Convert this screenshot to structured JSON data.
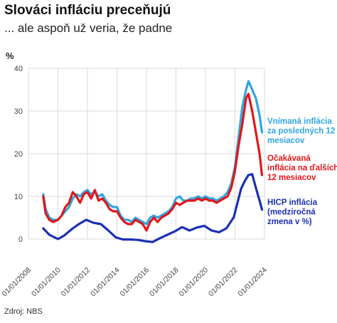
{
  "header": {
    "title": "Slováci infláciu preceňujú",
    "subtitle": "... ale aspoň už veria, že padne"
  },
  "footer": {
    "source": "Zdroj: NBS"
  },
  "colors": {
    "perceived": "#2ea6e0",
    "expected": "#e3151a",
    "hicp": "#1b2fb4",
    "grid": "#d9d9d9",
    "axis_text": "#444444"
  },
  "chart_data": {
    "type": "line",
    "title": "Slováci infláciu preceňujú",
    "subtitle": "... ale aspoň už veria, že padne",
    "ylabel": "%",
    "ylim": [
      -2,
      40
    ],
    "yticks": [
      0,
      10,
      20,
      30,
      40
    ],
    "xlim": [
      "2008-01",
      "2024-01"
    ],
    "xticks": [
      "01/01/2008",
      "01/01/2010",
      "01/01/2012",
      "01/01/2014",
      "01/01/2016",
      "01/01/2018",
      "01/01/2020",
      "01/01/2022",
      "01/01/2024"
    ],
    "grid": true,
    "legend": "inline-right",
    "series": [
      {
        "name": "Vnímaná inflácia za posledných 12 mesiacov",
        "label_lines": [
          "Vnímaná inflácia",
          "za posledných 12",
          "mesiacov"
        ],
        "color_key": "perceived",
        "points": [
          [
            "2009-01",
            10.5
          ],
          [
            "2009-03",
            7
          ],
          [
            "2009-06",
            5
          ],
          [
            "2009-09",
            4.5
          ],
          [
            "2010-01",
            4.5
          ],
          [
            "2010-04",
            5.5
          ],
          [
            "2010-07",
            6.5
          ],
          [
            "2010-10",
            7.5
          ],
          [
            "2011-01",
            9.5
          ],
          [
            "2011-04",
            10.5
          ],
          [
            "2011-07",
            10
          ],
          [
            "2011-10",
            11
          ],
          [
            "2012-01",
            11.5
          ],
          [
            "2012-04",
            10.5
          ],
          [
            "2012-07",
            11
          ],
          [
            "2012-10",
            10
          ],
          [
            "2013-01",
            10.5
          ],
          [
            "2013-04",
            9
          ],
          [
            "2013-07",
            8
          ],
          [
            "2013-10",
            7.5
          ],
          [
            "2014-01",
            7.5
          ],
          [
            "2014-04",
            5.5
          ],
          [
            "2014-07",
            4.5
          ],
          [
            "2014-10",
            4.5
          ],
          [
            "2015-01",
            4
          ],
          [
            "2015-04",
            5
          ],
          [
            "2015-07",
            4.5
          ],
          [
            "2015-10",
            4
          ],
          [
            "2016-01",
            3.5
          ],
          [
            "2016-04",
            5
          ],
          [
            "2016-07",
            5.5
          ],
          [
            "2016-10",
            5
          ],
          [
            "2017-01",
            5.5
          ],
          [
            "2017-04",
            6
          ],
          [
            "2017-07",
            6.5
          ],
          [
            "2017-10",
            7.5
          ],
          [
            "2018-01",
            9.5
          ],
          [
            "2018-04",
            10
          ],
          [
            "2018-07",
            9
          ],
          [
            "2018-10",
            9
          ],
          [
            "2019-01",
            9.5
          ],
          [
            "2019-04",
            9.5
          ],
          [
            "2019-07",
            10
          ],
          [
            "2019-10",
            9.5
          ],
          [
            "2020-01",
            10
          ],
          [
            "2020-04",
            9.5
          ],
          [
            "2020-07",
            9.5
          ],
          [
            "2020-10",
            9
          ],
          [
            "2021-01",
            9.5
          ],
          [
            "2021-04",
            10
          ],
          [
            "2021-07",
            11
          ],
          [
            "2021-10",
            13
          ],
          [
            "2022-01",
            17
          ],
          [
            "2022-04",
            24
          ],
          [
            "2022-07",
            31
          ],
          [
            "2022-10",
            35
          ],
          [
            "2022-12",
            37
          ],
          [
            "2023-03",
            35
          ],
          [
            "2023-06",
            33
          ],
          [
            "2023-09",
            29
          ],
          [
            "2023-11",
            25
          ]
        ]
      },
      {
        "name": "Očakávaná inflácia na ďalších 12 mesiacov",
        "label_lines": [
          "Očakávaná",
          "inflácia na ďalších",
          "12 mesiacov"
        ],
        "color_key": "expected",
        "points": [
          [
            "2009-01",
            10
          ],
          [
            "2009-03",
            6
          ],
          [
            "2009-06",
            4.5
          ],
          [
            "2009-09",
            4
          ],
          [
            "2010-01",
            4.5
          ],
          [
            "2010-04",
            5.5
          ],
          [
            "2010-07",
            7.5
          ],
          [
            "2010-10",
            8.5
          ],
          [
            "2011-01",
            11
          ],
          [
            "2011-04",
            10
          ],
          [
            "2011-07",
            8.5
          ],
          [
            "2011-10",
            10.5
          ],
          [
            "2012-01",
            11
          ],
          [
            "2012-04",
            9.5
          ],
          [
            "2012-07",
            11.5
          ],
          [
            "2012-10",
            9
          ],
          [
            "2013-01",
            9.5
          ],
          [
            "2013-04",
            8.5
          ],
          [
            "2013-07",
            7
          ],
          [
            "2013-10",
            6.5
          ],
          [
            "2014-01",
            6.5
          ],
          [
            "2014-04",
            5
          ],
          [
            "2014-07",
            4
          ],
          [
            "2014-10",
            3.5
          ],
          [
            "2015-01",
            3.5
          ],
          [
            "2015-04",
            4.5
          ],
          [
            "2015-07",
            4
          ],
          [
            "2015-10",
            3.5
          ],
          [
            "2016-01",
            2
          ],
          [
            "2016-04",
            4
          ],
          [
            "2016-07",
            5
          ],
          [
            "2016-10",
            4
          ],
          [
            "2017-01",
            5
          ],
          [
            "2017-04",
            5.5
          ],
          [
            "2017-07",
            6
          ],
          [
            "2017-10",
            7
          ],
          [
            "2018-01",
            8.5
          ],
          [
            "2018-04",
            8
          ],
          [
            "2018-07",
            8.5
          ],
          [
            "2018-10",
            9
          ],
          [
            "2019-01",
            9
          ],
          [
            "2019-04",
            9
          ],
          [
            "2019-07",
            9.5
          ],
          [
            "2019-10",
            9
          ],
          [
            "2020-01",
            9.5
          ],
          [
            "2020-04",
            9
          ],
          [
            "2020-07",
            9
          ],
          [
            "2020-10",
            8.5
          ],
          [
            "2021-01",
            9
          ],
          [
            "2021-04",
            9.5
          ],
          [
            "2021-07",
            10
          ],
          [
            "2021-10",
            12
          ],
          [
            "2022-01",
            16
          ],
          [
            "2022-04",
            22
          ],
          [
            "2022-07",
            27
          ],
          [
            "2022-10",
            33
          ],
          [
            "2022-12",
            34
          ],
          [
            "2023-03",
            30
          ],
          [
            "2023-06",
            25
          ],
          [
            "2023-09",
            20
          ],
          [
            "2023-11",
            15
          ]
        ]
      },
      {
        "name": "HICP inflácia (medziročná zmena v %)",
        "label_lines": [
          "HICP inflácia",
          "(medziročná",
          "zmena v %)"
        ],
        "color_key": "hicp",
        "points": [
          [
            "2009-01",
            2.5
          ],
          [
            "2009-06",
            1
          ],
          [
            "2010-01",
            0
          ],
          [
            "2010-06",
            0.8
          ],
          [
            "2011-01",
            2.5
          ],
          [
            "2011-06",
            3.5
          ],
          [
            "2011-12",
            4.5
          ],
          [
            "2012-06",
            3.8
          ],
          [
            "2012-12",
            3.5
          ],
          [
            "2013-06",
            2
          ],
          [
            "2013-12",
            0.4
          ],
          [
            "2014-06",
            -0.1
          ],
          [
            "2014-12",
            -0.1
          ],
          [
            "2015-06",
            -0.2
          ],
          [
            "2015-12",
            -0.5
          ],
          [
            "2016-06",
            -0.7
          ],
          [
            "2016-12",
            0.2
          ],
          [
            "2017-06",
            1
          ],
          [
            "2017-12",
            1.8
          ],
          [
            "2018-06",
            2.8
          ],
          [
            "2018-12",
            2
          ],
          [
            "2019-06",
            2.7
          ],
          [
            "2019-12",
            3.1
          ],
          [
            "2020-06",
            2
          ],
          [
            "2020-12",
            1.6
          ],
          [
            "2021-06",
            2.5
          ],
          [
            "2021-12",
            5.1
          ],
          [
            "2022-06",
            11.8
          ],
          [
            "2022-09",
            13.6
          ],
          [
            "2022-12",
            15
          ],
          [
            "2023-03",
            15.2
          ],
          [
            "2023-06",
            12
          ],
          [
            "2023-09",
            9
          ],
          [
            "2023-11",
            6.9
          ]
        ]
      }
    ]
  }
}
